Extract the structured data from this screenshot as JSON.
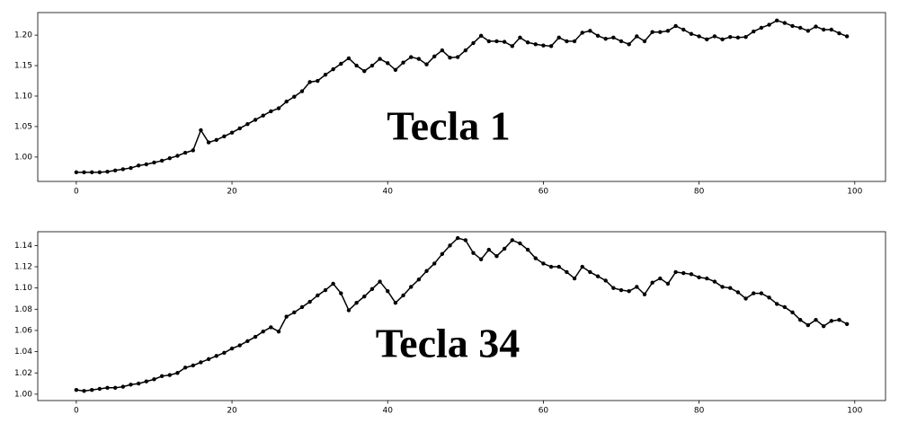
{
  "chart_data": [
    {
      "type": "line",
      "annotation": "Tecla 1",
      "x": [
        0,
        1,
        2,
        3,
        4,
        5,
        6,
        7,
        8,
        9,
        10,
        11,
        12,
        13,
        14,
        15,
        16,
        17,
        18,
        19,
        20,
        21,
        22,
        23,
        24,
        25,
        26,
        27,
        28,
        29,
        30,
        31,
        32,
        33,
        34,
        35,
        36,
        37,
        38,
        39,
        40,
        41,
        42,
        43,
        44,
        45,
        46,
        47,
        48,
        49,
        50,
        51,
        52,
        53,
        54,
        55,
        56,
        57,
        58,
        59,
        60,
        61,
        62,
        63,
        64,
        65,
        66,
        67,
        68,
        69,
        70,
        71,
        72,
        73,
        74,
        75,
        76,
        77,
        78,
        79,
        80,
        81,
        82,
        83,
        84,
        85,
        86,
        87,
        88,
        89,
        90,
        91,
        92,
        93,
        94,
        95,
        96,
        97,
        98,
        99
      ],
      "series": [
        {
          "color": "#000000",
          "values": [
            0.975,
            0.975,
            0.975,
            0.975,
            0.976,
            0.978,
            0.98,
            0.982,
            0.986,
            0.988,
            0.991,
            0.994,
            0.998,
            1.002,
            1.007,
            1.011,
            1.044,
            1.024,
            1.028,
            1.034,
            1.04,
            1.047,
            1.054,
            1.061,
            1.068,
            1.075,
            1.08,
            1.091,
            1.099,
            1.108,
            1.123,
            1.125,
            1.135,
            1.144,
            1.153,
            1.162,
            1.15,
            1.141,
            1.15,
            1.161,
            1.154,
            1.143,
            1.155,
            1.164,
            1.161,
            1.152,
            1.165,
            1.175,
            1.163,
            1.164,
            1.175,
            1.187,
            1.199,
            1.19,
            1.19,
            1.189,
            1.182,
            1.196,
            1.188,
            1.185,
            1.183,
            1.182,
            1.196,
            1.19,
            1.19,
            1.204,
            1.207,
            1.199,
            1.194,
            1.196,
            1.19,
            1.185,
            1.198,
            1.19,
            1.205,
            1.205,
            1.207,
            1.215,
            1.209,
            1.202,
            1.198,
            1.193,
            1.198,
            1.193,
            1.197,
            1.196,
            1.197,
            1.206,
            1.212,
            1.217,
            1.224,
            1.22,
            1.215,
            1.212,
            1.207,
            1.214,
            1.209,
            1.209,
            1.203,
            1.198
          ]
        }
      ],
      "xlim": [
        -4.95,
        103.95
      ],
      "xticks": [
        0,
        20,
        40,
        60,
        80,
        100
      ],
      "ylim": [
        0.96,
        1.237
      ],
      "yticks": [
        {
          "value": 1.0,
          "label": "1.00"
        },
        1.05,
        {
          "value": 1.1,
          "label": "1.10"
        },
        1.15,
        {
          "value": 1.2,
          "label": "1.20"
        }
      ],
      "grid": false,
      "markers": true
    },
    {
      "type": "line",
      "annotation": "Tecla 34",
      "x": [
        0,
        1,
        2,
        3,
        4,
        5,
        6,
        7,
        8,
        9,
        10,
        11,
        12,
        13,
        14,
        15,
        16,
        17,
        18,
        19,
        20,
        21,
        22,
        23,
        24,
        25,
        26,
        27,
        28,
        29,
        30,
        31,
        32,
        33,
        34,
        35,
        36,
        37,
        38,
        39,
        40,
        41,
        42,
        43,
        44,
        45,
        46,
        47,
        48,
        49,
        50,
        51,
        52,
        53,
        54,
        55,
        56,
        57,
        58,
        59,
        60,
        61,
        62,
        63,
        64,
        65,
        66,
        67,
        68,
        69,
        70,
        71,
        72,
        73,
        74,
        75,
        76,
        77,
        78,
        79,
        80,
        81,
        82,
        83,
        84,
        85,
        86,
        87,
        88,
        89,
        90,
        91,
        92,
        93,
        94,
        95,
        96,
        97,
        98,
        99
      ],
      "series": [
        {
          "color": "#000000",
          "values": [
            1.004,
            1.003,
            1.004,
            1.005,
            1.006,
            1.006,
            1.007,
            1.009,
            1.01,
            1.012,
            1.014,
            1.017,
            1.018,
            1.02,
            1.025,
            1.027,
            1.03,
            1.033,
            1.036,
            1.039,
            1.043,
            1.046,
            1.05,
            1.054,
            1.059,
            1.063,
            1.059,
            1.073,
            1.077,
            1.082,
            1.087,
            1.093,
            1.098,
            1.104,
            1.095,
            1.079,
            1.086,
            1.092,
            1.099,
            1.106,
            1.097,
            1.086,
            1.093,
            1.101,
            1.108,
            1.116,
            1.123,
            1.132,
            1.14,
            1.147,
            1.145,
            1.133,
            1.127,
            1.136,
            1.13,
            1.137,
            1.145,
            1.142,
            1.136,
            1.128,
            1.123,
            1.12,
            1.12,
            1.115,
            1.109,
            1.12,
            1.115,
            1.111,
            1.107,
            1.1,
            1.098,
            1.097,
            1.101,
            1.094,
            1.105,
            1.109,
            1.104,
            1.115,
            1.114,
            1.113,
            1.11,
            1.109,
            1.106,
            1.101,
            1.1,
            1.096,
            1.09,
            1.095,
            1.095,
            1.091,
            1.085,
            1.082,
            1.077,
            1.07,
            1.065,
            1.07,
            1.064,
            1.069,
            1.07,
            1.066
          ]
        }
      ],
      "xlim": [
        -4.95,
        103.95
      ],
      "xticks": [
        0,
        20,
        40,
        60,
        80,
        100
      ],
      "ylim": [
        0.994,
        1.153
      ],
      "yticks": [
        {
          "value": 1.0,
          "label": "1.00"
        },
        1.02,
        1.04,
        1.06,
        1.08,
        {
          "value": 1.1,
          "label": "1.10"
        },
        1.12,
        1.14
      ],
      "grid": false,
      "markers": true
    }
  ]
}
